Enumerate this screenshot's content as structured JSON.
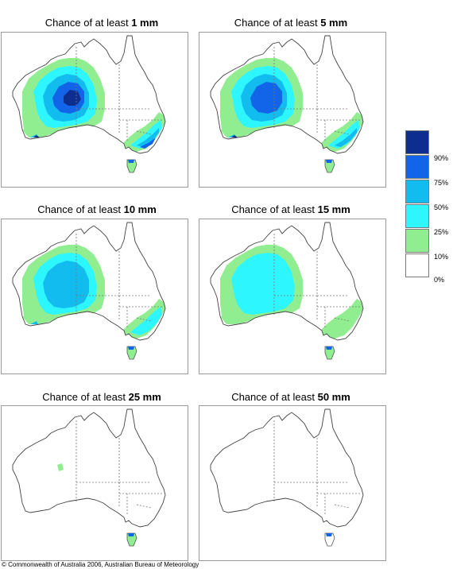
{
  "title_prefix": "Chance of at least",
  "panels": [
    {
      "amount": "1 mm",
      "level": 4
    },
    {
      "amount": "5 mm",
      "level": 3
    },
    {
      "amount": "10 mm",
      "level": 2
    },
    {
      "amount": "15 mm",
      "level": 1
    },
    {
      "amount": "25 mm",
      "level": 0.3
    },
    {
      "amount": "50 mm",
      "level": 0
    }
  ],
  "legend": {
    "labels": [
      "90%",
      "75%",
      "50%",
      "25%",
      "10%",
      "0%"
    ],
    "colors": [
      "#0d2e8f",
      "#1265e8",
      "#12bcee",
      "#2ef6ff",
      "#90ee90",
      "#ffffff"
    ]
  },
  "copyright": "© Commonwealth of Australia 2006, Australian Bureau of Meteorology"
}
